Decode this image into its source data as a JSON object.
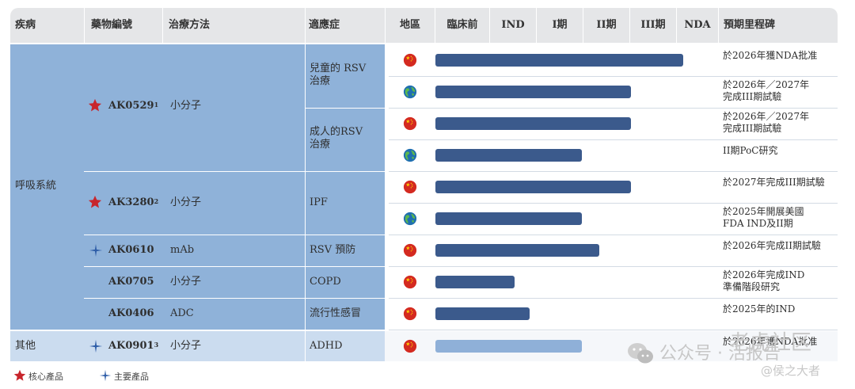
{
  "headers": {
    "disease": "疾病",
    "drug_code": "藥物編號",
    "modality": "治療方法",
    "indication": "適應症",
    "region": "地區",
    "preclinical": "臨床前",
    "ind": "IND",
    "phase1": "I期",
    "phase2": "II期",
    "phase3": "III期",
    "nda": "NDA",
    "milestone": "預期里程碑"
  },
  "diseases": {
    "respiratory": "呼吸系統",
    "other": "其他"
  },
  "drugs": [
    {
      "code": "AK0529",
      "sup": "1",
      "marker": "core",
      "modality": "小分子"
    },
    {
      "code": "AK3280",
      "sup": "2",
      "marker": "core",
      "modality": "小分子"
    },
    {
      "code": "AK0610",
      "sup": "",
      "marker": "main",
      "modality": "mAb"
    },
    {
      "code": "AK0705",
      "sup": "",
      "marker": "none",
      "modality": "小分子"
    },
    {
      "code": "AK0406",
      "sup": "",
      "marker": "none",
      "modality": "ADC"
    },
    {
      "code": "AK0901",
      "sup": "3",
      "marker": "main",
      "modality": "小分子"
    }
  ],
  "indications": {
    "rsv_child_1": "兒童的 RSV",
    "rsv_child_2": "治療",
    "rsv_adult_1": "成人的RSV",
    "rsv_adult_2": "治療",
    "ipf": "IPF",
    "rsv_prevent": "RSV 預防",
    "copd": "COPD",
    "flu": "流行性感冒",
    "adhd": "ADHD"
  },
  "rows": [
    {
      "region": "china",
      "progress": 1.0,
      "milestone": [
        "於2026年獲NDA批准"
      ]
    },
    {
      "region": "global",
      "progress": 0.79,
      "milestone": [
        "於2026年／2027年",
        "完成III期試驗"
      ]
    },
    {
      "region": "china",
      "progress": 0.79,
      "milestone": [
        "於2026年／2027年",
        "完成III期試驗"
      ]
    },
    {
      "region": "global",
      "progress": 0.59,
      "milestone": [
        "II期PoC研究"
      ]
    },
    {
      "region": "china",
      "progress": 0.79,
      "milestone": [
        "於2027年完成III期試驗"
      ]
    },
    {
      "region": "global",
      "progress": 0.59,
      "milestone": [
        "於2025年開展美國",
        "FDA IND及II期"
      ]
    },
    {
      "region": "china",
      "progress": 0.66,
      "milestone": [
        "於2026年完成II期試驗"
      ]
    },
    {
      "region": "china",
      "progress": 0.32,
      "milestone": [
        "於2026年完成IND",
        "準備階段研究"
      ]
    },
    {
      "region": "china",
      "progress": 0.38,
      "milestone": [
        "於2025年的IND"
      ]
    },
    {
      "region": "china",
      "progress": 0.59,
      "milestone": [
        "於2026年獲NDA批准"
      ],
      "light": true
    }
  ],
  "legend": {
    "core": "核心產品",
    "main": "主要產品"
  },
  "watermark": {
    "site": "老虎社区",
    "account": "公众号 · 活报告",
    "author": "@侯之大者"
  },
  "colors": {
    "bar": "#3b5a8c",
    "bar_light": "#8fb0d8",
    "block": "#8fb2d9",
    "block_light": "#cbdcef",
    "star": "#c8252c",
    "cross": "#2f5ea8"
  }
}
